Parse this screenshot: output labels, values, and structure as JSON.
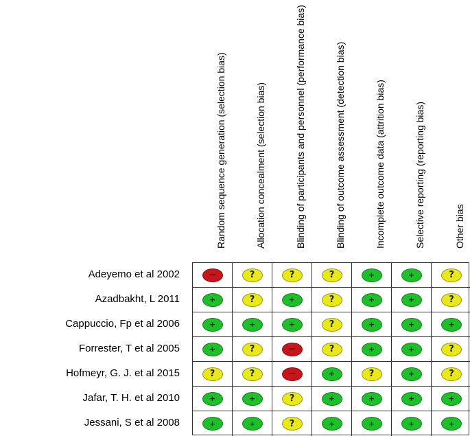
{
  "domains": [
    "Random sequence generation (selection bias)",
    "Allocation concealment (selection bias)",
    "Blinding of participants and personnel (performance bias)",
    "Blinding of outcome assessment (detection bias)",
    "Incomplete outcome data (attrition bias)",
    "Selective reporting (reporting bias)",
    "Other bias"
  ],
  "studies": [
    {
      "name": "Adeyemo et al 2002",
      "ratings": [
        "high",
        "unclear",
        "unclear",
        "unclear",
        "low",
        "low",
        "unclear"
      ]
    },
    {
      "name": "Azadbakht, L 2011",
      "ratings": [
        "low",
        "unclear",
        "low",
        "unclear",
        "low",
        "low",
        "unclear"
      ]
    },
    {
      "name": "Cappuccio, Fp et al 2006",
      "ratings": [
        "low",
        "low",
        "low",
        "unclear",
        "low",
        "low",
        "low"
      ]
    },
    {
      "name": "Forrester, T et al 2005",
      "ratings": [
        "low",
        "unclear",
        "high",
        "unclear",
        "low",
        "low",
        "unclear"
      ]
    },
    {
      "name": "Hofmeyr, G. J. et al 2015",
      "ratings": [
        "unclear",
        "unclear",
        "high",
        "low",
        "unclear",
        "low",
        "unclear"
      ]
    },
    {
      "name": "Jafar, T. H. et al 2010",
      "ratings": [
        "low",
        "low",
        "unclear",
        "low",
        "low",
        "low",
        "low"
      ]
    },
    {
      "name": "Jessani, S et al 2008",
      "ratings": [
        "low",
        "low",
        "unclear",
        "low",
        "low",
        "low",
        "low"
      ]
    }
  ],
  "symbols": {
    "low": "+",
    "unclear": "?",
    "high": "−"
  },
  "colors": {
    "low": "#1fbf2b",
    "unclear": "#e8e81a",
    "high": "#c8141b"
  }
}
